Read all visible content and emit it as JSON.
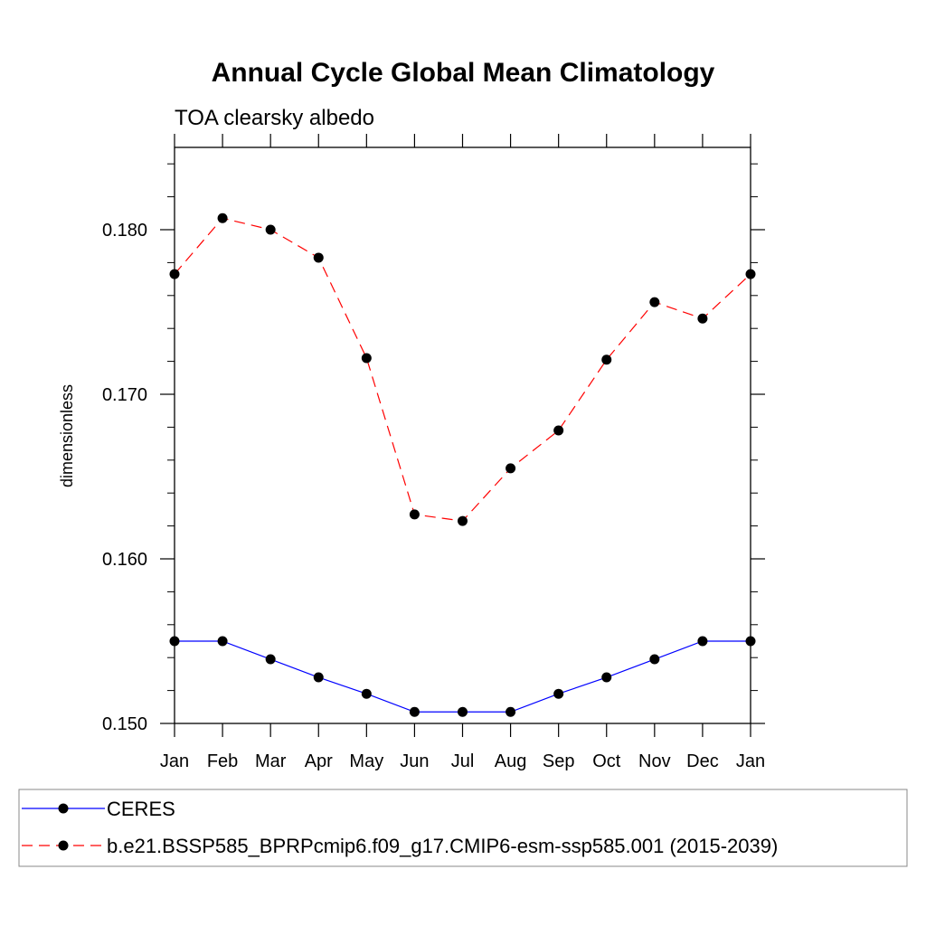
{
  "chart_data": {
    "type": "line",
    "title": "Annual Cycle Global Mean Climatology",
    "subtitle": "TOA clearsky albedo",
    "xlabel": "",
    "ylabel": "dimensionless",
    "categories": [
      "Jan",
      "Feb",
      "Mar",
      "Apr",
      "May",
      "Jun",
      "Jul",
      "Aug",
      "Sep",
      "Oct",
      "Nov",
      "Dec",
      "Jan"
    ],
    "ylim": [
      0.15,
      0.185
    ],
    "yticks": [
      {
        "value": 0.15,
        "label": "0.150"
      },
      {
        "value": 0.16,
        "label": "0.160"
      },
      {
        "value": 0.17,
        "label": "0.170"
      },
      {
        "value": 0.18,
        "label": "0.180"
      }
    ],
    "y_minor_step": 0.002,
    "series": [
      {
        "name": "CERES",
        "color": "#0000ff",
        "dash": "solid",
        "values": [
          0.155,
          0.155,
          0.1539,
          0.1528,
          0.1518,
          0.1507,
          0.1507,
          0.1507,
          0.1518,
          0.1528,
          0.1539,
          0.155,
          0.155
        ]
      },
      {
        "name": "b.e21.BSSP585_BPRPcmip6.f09_g17.CMIP6-esm-ssp585.001 (2015-2039)",
        "color": "#ff0000",
        "dash": "dashed",
        "values": [
          0.1773,
          0.1807,
          0.18,
          0.1783,
          0.1722,
          0.1627,
          0.1623,
          0.1655,
          0.1678,
          0.1721,
          0.1756,
          0.1746,
          0.1773
        ]
      }
    ],
    "marker_color": "#000000",
    "legend_position": "bottom"
  }
}
